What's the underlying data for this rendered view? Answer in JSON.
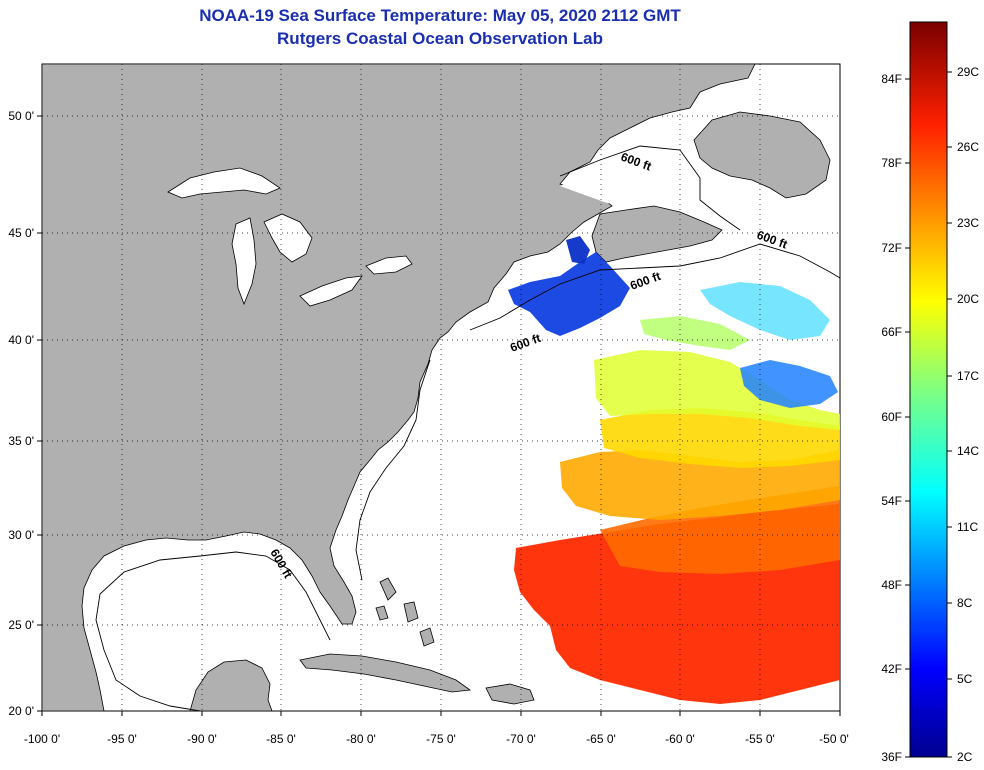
{
  "header": {
    "title": "NOAA-19 Sea Surface Temperature:  May 05, 2020 2112 GMT",
    "subtitle": "Rutgers Coastal Ocean Observation Lab"
  },
  "map": {
    "lon_range": [
      -100,
      -50
    ],
    "lat_range": [
      20,
      52
    ],
    "lon_labels": [
      "-100 0'",
      "-95 0'",
      "-90 0'",
      "-85 0'",
      "-80 0'",
      "-75 0'",
      "-70 0'",
      "-65 0'",
      "-60 0'",
      "-55 0'",
      "-50 0'"
    ],
    "lat_labels": [
      "20 0'",
      "25 0'",
      "30 0'",
      "35 0'",
      "40 0'",
      "45 0'",
      "50 0'"
    ],
    "contour_label": "600 ft",
    "land_color": "#b0b0b0",
    "ocean_color": "#ffffff"
  },
  "colorbar": {
    "fahrenheit_labels": [
      "36F",
      "42F",
      "48F",
      "54F",
      "60F",
      "66F",
      "72F",
      "78F",
      "84F"
    ],
    "celsius_labels": [
      "2C",
      "5C",
      "8C",
      "11C",
      "14C",
      "17C",
      "20C",
      "23C",
      "26C",
      "29C"
    ],
    "colors": [
      "#00008f",
      "#0000ff",
      "#0080ff",
      "#00ffff",
      "#80ff80",
      "#ffff00",
      "#ff8000",
      "#ff0000",
      "#800000"
    ]
  }
}
